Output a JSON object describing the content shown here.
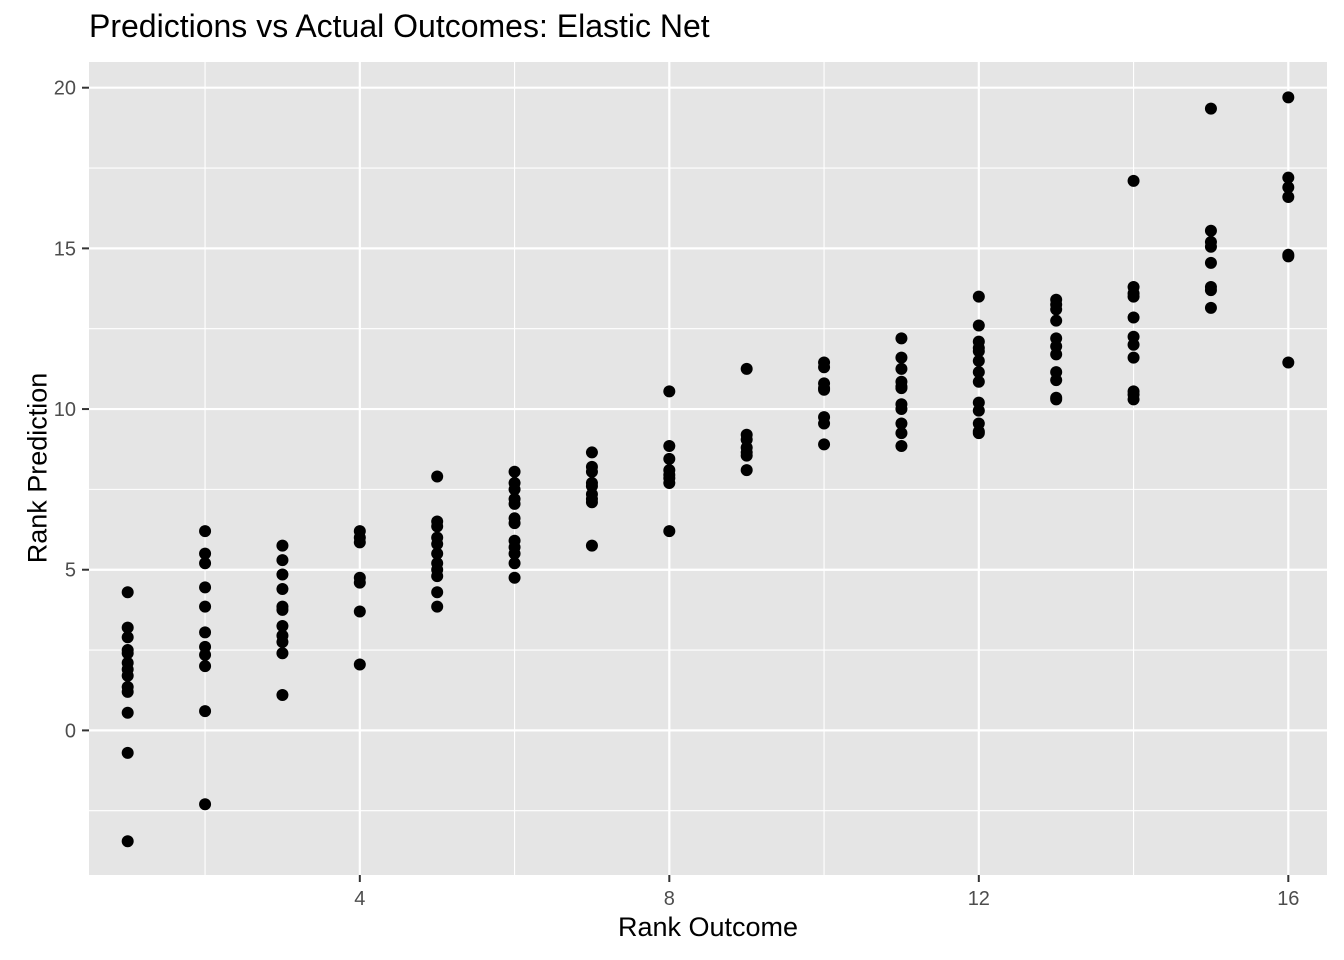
{
  "chart_data": {
    "type": "scatter",
    "title": "Predictions vs Actual Outcomes: Elastic Net",
    "xlabel": "Rank Outcome",
    "ylabel": "Rank Prediction",
    "xlim": [
      0.5,
      16.5
    ],
    "ylim": [
      -4.5,
      20.8
    ],
    "x_ticks": [
      4,
      8,
      12,
      16
    ],
    "y_ticks": [
      0,
      5,
      10,
      15,
      20
    ],
    "grid": true,
    "panel_background": "#e5e5e5",
    "grid_color": "#ffffff",
    "point_color": "#000000",
    "points": [
      {
        "x": 1,
        "y": 4.3
      },
      {
        "x": 1,
        "y": 3.2
      },
      {
        "x": 1,
        "y": 2.9
      },
      {
        "x": 1,
        "y": 2.5
      },
      {
        "x": 1,
        "y": 2.4
      },
      {
        "x": 1,
        "y": 2.1
      },
      {
        "x": 1,
        "y": 1.9
      },
      {
        "x": 1,
        "y": 1.7
      },
      {
        "x": 1,
        "y": 1.35
      },
      {
        "x": 1,
        "y": 1.2
      },
      {
        "x": 1,
        "y": 0.55
      },
      {
        "x": 1,
        "y": -0.7
      },
      {
        "x": 1,
        "y": -3.45
      },
      {
        "x": 2,
        "y": 6.2
      },
      {
        "x": 2,
        "y": 5.5
      },
      {
        "x": 2,
        "y": 5.2
      },
      {
        "x": 2,
        "y": 4.45
      },
      {
        "x": 2,
        "y": 3.85
      },
      {
        "x": 2,
        "y": 3.05
      },
      {
        "x": 2,
        "y": 2.6
      },
      {
        "x": 2,
        "y": 2.35
      },
      {
        "x": 2,
        "y": 2.0
      },
      {
        "x": 2,
        "y": 0.6
      },
      {
        "x": 2,
        "y": -2.3
      },
      {
        "x": 3,
        "y": 5.75
      },
      {
        "x": 3,
        "y": 5.3
      },
      {
        "x": 3,
        "y": 4.85
      },
      {
        "x": 3,
        "y": 4.4
      },
      {
        "x": 3,
        "y": 3.85
      },
      {
        "x": 3,
        "y": 3.75
      },
      {
        "x": 3,
        "y": 3.25
      },
      {
        "x": 3,
        "y": 2.95
      },
      {
        "x": 3,
        "y": 2.75
      },
      {
        "x": 3,
        "y": 2.4
      },
      {
        "x": 3,
        "y": 1.1
      },
      {
        "x": 4,
        "y": 6.2
      },
      {
        "x": 4,
        "y": 6.0
      },
      {
        "x": 4,
        "y": 5.85
      },
      {
        "x": 4,
        "y": 4.75
      },
      {
        "x": 4,
        "y": 4.6
      },
      {
        "x": 4,
        "y": 3.7
      },
      {
        "x": 4,
        "y": 2.05
      },
      {
        "x": 5,
        "y": 7.9
      },
      {
        "x": 5,
        "y": 6.5
      },
      {
        "x": 5,
        "y": 6.35
      },
      {
        "x": 5,
        "y": 6.0
      },
      {
        "x": 5,
        "y": 5.8
      },
      {
        "x": 5,
        "y": 5.5
      },
      {
        "x": 5,
        "y": 5.2
      },
      {
        "x": 5,
        "y": 5.0
      },
      {
        "x": 5,
        "y": 4.8
      },
      {
        "x": 5,
        "y": 4.3
      },
      {
        "x": 5,
        "y": 3.85
      },
      {
        "x": 6,
        "y": 8.05
      },
      {
        "x": 6,
        "y": 7.7
      },
      {
        "x": 6,
        "y": 7.5
      },
      {
        "x": 6,
        "y": 7.2
      },
      {
        "x": 6,
        "y": 7.05
      },
      {
        "x": 6,
        "y": 6.6
      },
      {
        "x": 6,
        "y": 6.45
      },
      {
        "x": 6,
        "y": 5.9
      },
      {
        "x": 6,
        "y": 5.7
      },
      {
        "x": 6,
        "y": 5.5
      },
      {
        "x": 6,
        "y": 5.2
      },
      {
        "x": 6,
        "y": 4.75
      },
      {
        "x": 7,
        "y": 8.65
      },
      {
        "x": 7,
        "y": 8.2
      },
      {
        "x": 7,
        "y": 8.05
      },
      {
        "x": 7,
        "y": 7.7
      },
      {
        "x": 7,
        "y": 7.6
      },
      {
        "x": 7,
        "y": 7.35
      },
      {
        "x": 7,
        "y": 7.2
      },
      {
        "x": 7,
        "y": 7.1
      },
      {
        "x": 7,
        "y": 5.75
      },
      {
        "x": 8,
        "y": 10.55
      },
      {
        "x": 8,
        "y": 8.85
      },
      {
        "x": 8,
        "y": 8.45
      },
      {
        "x": 8,
        "y": 8.1
      },
      {
        "x": 8,
        "y": 7.95
      },
      {
        "x": 8,
        "y": 7.85
      },
      {
        "x": 8,
        "y": 7.7
      },
      {
        "x": 8,
        "y": 6.2
      },
      {
        "x": 9,
        "y": 11.25
      },
      {
        "x": 9,
        "y": 9.2
      },
      {
        "x": 9,
        "y": 9.05
      },
      {
        "x": 9,
        "y": 8.8
      },
      {
        "x": 9,
        "y": 8.65
      },
      {
        "x": 9,
        "y": 8.55
      },
      {
        "x": 9,
        "y": 8.1
      },
      {
        "x": 10,
        "y": 11.45
      },
      {
        "x": 10,
        "y": 11.3
      },
      {
        "x": 10,
        "y": 10.8
      },
      {
        "x": 10,
        "y": 10.65
      },
      {
        "x": 10,
        "y": 10.6
      },
      {
        "x": 10,
        "y": 9.75
      },
      {
        "x": 10,
        "y": 9.55
      },
      {
        "x": 10,
        "y": 8.9
      },
      {
        "x": 11,
        "y": 12.2
      },
      {
        "x": 11,
        "y": 11.6
      },
      {
        "x": 11,
        "y": 11.25
      },
      {
        "x": 11,
        "y": 10.85
      },
      {
        "x": 11,
        "y": 10.7
      },
      {
        "x": 11,
        "y": 10.65
      },
      {
        "x": 11,
        "y": 10.15
      },
      {
        "x": 11,
        "y": 10.0
      },
      {
        "x": 11,
        "y": 9.55
      },
      {
        "x": 11,
        "y": 9.25
      },
      {
        "x": 11,
        "y": 8.85
      },
      {
        "x": 12,
        "y": 13.5
      },
      {
        "x": 12,
        "y": 12.6
      },
      {
        "x": 12,
        "y": 12.1
      },
      {
        "x": 12,
        "y": 11.9
      },
      {
        "x": 12,
        "y": 11.8
      },
      {
        "x": 12,
        "y": 11.5
      },
      {
        "x": 12,
        "y": 11.15
      },
      {
        "x": 12,
        "y": 10.85
      },
      {
        "x": 12,
        "y": 10.2
      },
      {
        "x": 12,
        "y": 9.95
      },
      {
        "x": 12,
        "y": 9.55
      },
      {
        "x": 12,
        "y": 9.3
      },
      {
        "x": 12,
        "y": 9.25
      },
      {
        "x": 13,
        "y": 13.4
      },
      {
        "x": 13,
        "y": 13.25
      },
      {
        "x": 13,
        "y": 13.1
      },
      {
        "x": 13,
        "y": 12.75
      },
      {
        "x": 13,
        "y": 12.2
      },
      {
        "x": 13,
        "y": 11.95
      },
      {
        "x": 13,
        "y": 11.7
      },
      {
        "x": 13,
        "y": 11.15
      },
      {
        "x": 13,
        "y": 10.9
      },
      {
        "x": 13,
        "y": 10.35
      },
      {
        "x": 13,
        "y": 10.3
      },
      {
        "x": 14,
        "y": 17.1
      },
      {
        "x": 14,
        "y": 13.8
      },
      {
        "x": 14,
        "y": 13.6
      },
      {
        "x": 14,
        "y": 13.5
      },
      {
        "x": 14,
        "y": 12.85
      },
      {
        "x": 14,
        "y": 12.25
      },
      {
        "x": 14,
        "y": 12.0
      },
      {
        "x": 14,
        "y": 11.6
      },
      {
        "x": 14,
        "y": 10.55
      },
      {
        "x": 14,
        "y": 10.45
      },
      {
        "x": 14,
        "y": 10.3
      },
      {
        "x": 15,
        "y": 19.35
      },
      {
        "x": 15,
        "y": 15.55
      },
      {
        "x": 15,
        "y": 15.2
      },
      {
        "x": 15,
        "y": 15.05
      },
      {
        "x": 15,
        "y": 14.55
      },
      {
        "x": 15,
        "y": 13.8
      },
      {
        "x": 15,
        "y": 13.7
      },
      {
        "x": 15,
        "y": 13.15
      },
      {
        "x": 16,
        "y": 19.7
      },
      {
        "x": 16,
        "y": 17.2
      },
      {
        "x": 16,
        "y": 16.9
      },
      {
        "x": 16,
        "y": 16.6
      },
      {
        "x": 16,
        "y": 14.8
      },
      {
        "x": 16,
        "y": 14.75
      },
      {
        "x": 16,
        "y": 11.45
      }
    ]
  }
}
